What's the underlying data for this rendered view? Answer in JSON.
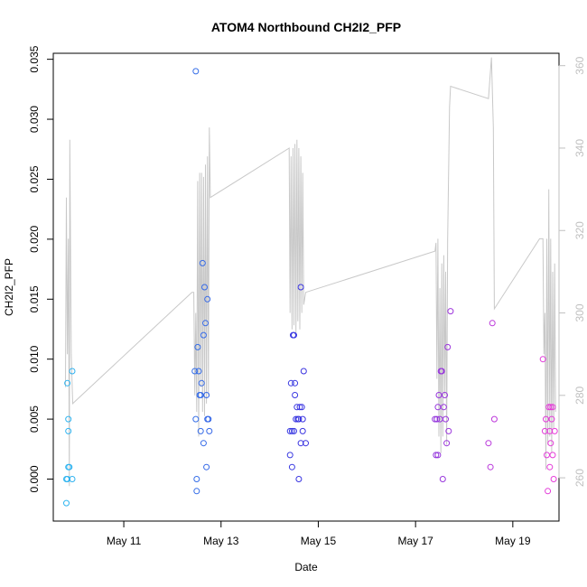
{
  "chart_data": {
    "type": "scatter",
    "title": "ATOM4 Northbound CH2I2_PFP",
    "xlabel": "Date",
    "ylabel": "CH2I2_PFP",
    "y2label": "",
    "x_ticks": [
      "May 11",
      "May 13",
      "May 15",
      "May 17",
      "May 19"
    ],
    "x_tick_days": [
      11,
      13,
      15,
      17,
      19
    ],
    "xlim": [
      9.55,
      19.95
    ],
    "ylim": [
      -0.0035,
      0.0355
    ],
    "y_ticks": [
      "0.000",
      "0.005",
      "0.010",
      "0.015",
      "0.020",
      "0.025",
      "0.030",
      "0.035"
    ],
    "y_tick_values": [
      0,
      0.005,
      0.01,
      0.015,
      0.02,
      0.025,
      0.03,
      0.035
    ],
    "y2lim": [
      249.5,
      363
    ],
    "y2_ticks": [
      "260",
      "280",
      "300",
      "320",
      "340",
      "360"
    ],
    "y2_tick_values": [
      260,
      280,
      300,
      320,
      340,
      360
    ],
    "grid": false,
    "colors": {
      "points_start": "#2fb5f0",
      "points_mid": "#3a2fe0",
      "points_end": "#e83bd9",
      "secondary_line": "#c8c8c8",
      "axis": "#000000",
      "right_axis": "#c0c0c0"
    },
    "points": [
      [
        9.82,
        -0.002
      ],
      [
        9.82,
        0.0
      ],
      [
        9.84,
        0.0
      ],
      [
        9.84,
        0.008
      ],
      [
        9.86,
        0.005
      ],
      [
        9.86,
        0.004
      ],
      [
        9.86,
        0.001
      ],
      [
        9.88,
        0.001
      ],
      [
        9.94,
        0.009
      ],
      [
        9.94,
        0.0
      ],
      [
        12.48,
        0.034
      ],
      [
        12.46,
        0.009
      ],
      [
        12.48,
        0.005
      ],
      [
        12.5,
        -0.001
      ],
      [
        12.5,
        0.0
      ],
      [
        12.52,
        0.011
      ],
      [
        12.54,
        0.009
      ],
      [
        12.56,
        0.007
      ],
      [
        12.58,
        0.007
      ],
      [
        12.58,
        0.004
      ],
      [
        12.6,
        0.008
      ],
      [
        12.62,
        0.018
      ],
      [
        12.64,
        0.012
      ],
      [
        12.64,
        0.003
      ],
      [
        12.66,
        0.016
      ],
      [
        12.68,
        0.013
      ],
      [
        12.7,
        0.001
      ],
      [
        12.7,
        0.007
      ],
      [
        12.72,
        0.015
      ],
      [
        12.72,
        0.005
      ],
      [
        12.74,
        0.005
      ],
      [
        12.76,
        0.004
      ],
      [
        14.42,
        0.002
      ],
      [
        14.42,
        0.004
      ],
      [
        14.44,
        0.008
      ],
      [
        14.46,
        0.004
      ],
      [
        14.46,
        0.001
      ],
      [
        14.48,
        0.012
      ],
      [
        14.5,
        0.012
      ],
      [
        14.5,
        0.004
      ],
      [
        14.52,
        0.008
      ],
      [
        14.52,
        0.007
      ],
      [
        14.54,
        0.005
      ],
      [
        14.56,
        0.006
      ],
      [
        14.58,
        0.005
      ],
      [
        14.6,
        0.005
      ],
      [
        14.6,
        0.0
      ],
      [
        14.62,
        0.006
      ],
      [
        14.64,
        0.003
      ],
      [
        14.64,
        0.016
      ],
      [
        14.66,
        0.006
      ],
      [
        14.68,
        0.004
      ],
      [
        14.68,
        0.005
      ],
      [
        14.7,
        0.009
      ],
      [
        14.74,
        0.003
      ],
      [
        17.4,
        0.005
      ],
      [
        17.42,
        0.002
      ],
      [
        17.44,
        0.005
      ],
      [
        17.46,
        0.002
      ],
      [
        17.46,
        0.006
      ],
      [
        17.48,
        0.007
      ],
      [
        17.5,
        0.005
      ],
      [
        17.52,
        0.009
      ],
      [
        17.54,
        0.009
      ],
      [
        17.56,
        0.0
      ],
      [
        17.58,
        0.006
      ],
      [
        17.6,
        0.007
      ],
      [
        17.62,
        0.005
      ],
      [
        17.64,
        0.003
      ],
      [
        17.66,
        0.011
      ],
      [
        17.68,
        0.004
      ],
      [
        17.72,
        0.014
      ],
      [
        18.5,
        0.003
      ],
      [
        18.54,
        0.001
      ],
      [
        18.58,
        0.013
      ],
      [
        18.62,
        0.005
      ],
      [
        19.62,
        0.01
      ],
      [
        19.66,
        0.004
      ],
      [
        19.68,
        0.005
      ],
      [
        19.7,
        0.002
      ],
      [
        19.72,
        -0.001
      ],
      [
        19.74,
        0.006
      ],
      [
        19.76,
        0.004
      ],
      [
        19.76,
        0.001
      ],
      [
        19.78,
        0.003
      ],
      [
        19.78,
        0.006
      ],
      [
        19.8,
        0.005
      ],
      [
        19.82,
        0.002
      ],
      [
        19.82,
        0.006
      ],
      [
        19.84,
        0.0
      ],
      [
        19.86,
        0.004
      ]
    ],
    "secondary_line": [
      [
        9.8,
        282
      ],
      [
        9.82,
        328
      ],
      [
        9.84,
        290
      ],
      [
        9.86,
        318
      ],
      [
        9.88,
        258
      ],
      [
        9.89,
        342
      ],
      [
        9.92,
        290
      ],
      [
        9.95,
        278
      ],
      [
        12.4,
        305
      ],
      [
        12.44,
        305
      ],
      [
        12.46,
        280
      ],
      [
        12.48,
        300
      ],
      [
        12.5,
        276
      ],
      [
        12.52,
        332
      ],
      [
        12.54,
        270
      ],
      [
        12.56,
        334
      ],
      [
        12.58,
        282
      ],
      [
        12.6,
        334
      ],
      [
        12.62,
        276
      ],
      [
        12.64,
        333
      ],
      [
        12.66,
        275
      ],
      [
        12.68,
        336
      ],
      [
        12.7,
        278
      ],
      [
        12.72,
        338
      ],
      [
        12.74,
        280
      ],
      [
        12.76,
        345
      ],
      [
        12.78,
        328
      ],
      [
        14.4,
        340
      ],
      [
        14.42,
        300
      ],
      [
        14.44,
        338
      ],
      [
        14.46,
        296
      ],
      [
        14.48,
        340
      ],
      [
        14.5,
        297
      ],
      [
        14.52,
        341
      ],
      [
        14.54,
        295
      ],
      [
        14.56,
        342
      ],
      [
        14.58,
        298
      ],
      [
        14.6,
        340
      ],
      [
        14.62,
        296
      ],
      [
        14.64,
        338
      ],
      [
        14.66,
        300
      ],
      [
        14.68,
        334
      ],
      [
        14.7,
        302
      ],
      [
        14.74,
        305
      ],
      [
        17.4,
        315
      ],
      [
        17.42,
        317
      ],
      [
        17.44,
        284
      ],
      [
        17.46,
        318
      ],
      [
        17.48,
        270
      ],
      [
        17.5,
        306
      ],
      [
        17.52,
        266
      ],
      [
        17.54,
        312
      ],
      [
        17.56,
        270
      ],
      [
        17.58,
        314
      ],
      [
        17.6,
        280
      ],
      [
        17.62,
        310
      ],
      [
        17.64,
        268
      ],
      [
        17.66,
        318
      ],
      [
        17.7,
        350
      ],
      [
        17.72,
        355
      ],
      [
        18.5,
        352
      ],
      [
        18.56,
        362
      ],
      [
        18.6,
        345
      ],
      [
        18.62,
        301
      ],
      [
        19.55,
        318
      ],
      [
        19.62,
        318
      ],
      [
        19.64,
        290
      ],
      [
        19.66,
        300
      ],
      [
        19.68,
        262
      ],
      [
        19.7,
        318
      ],
      [
        19.72,
        268
      ],
      [
        19.74,
        330
      ],
      [
        19.76,
        270
      ],
      [
        19.78,
        318
      ],
      [
        19.8,
        266
      ],
      [
        19.82,
        310
      ],
      [
        19.84,
        272
      ],
      [
        19.86,
        312
      ],
      [
        19.88,
        276
      ]
    ]
  }
}
